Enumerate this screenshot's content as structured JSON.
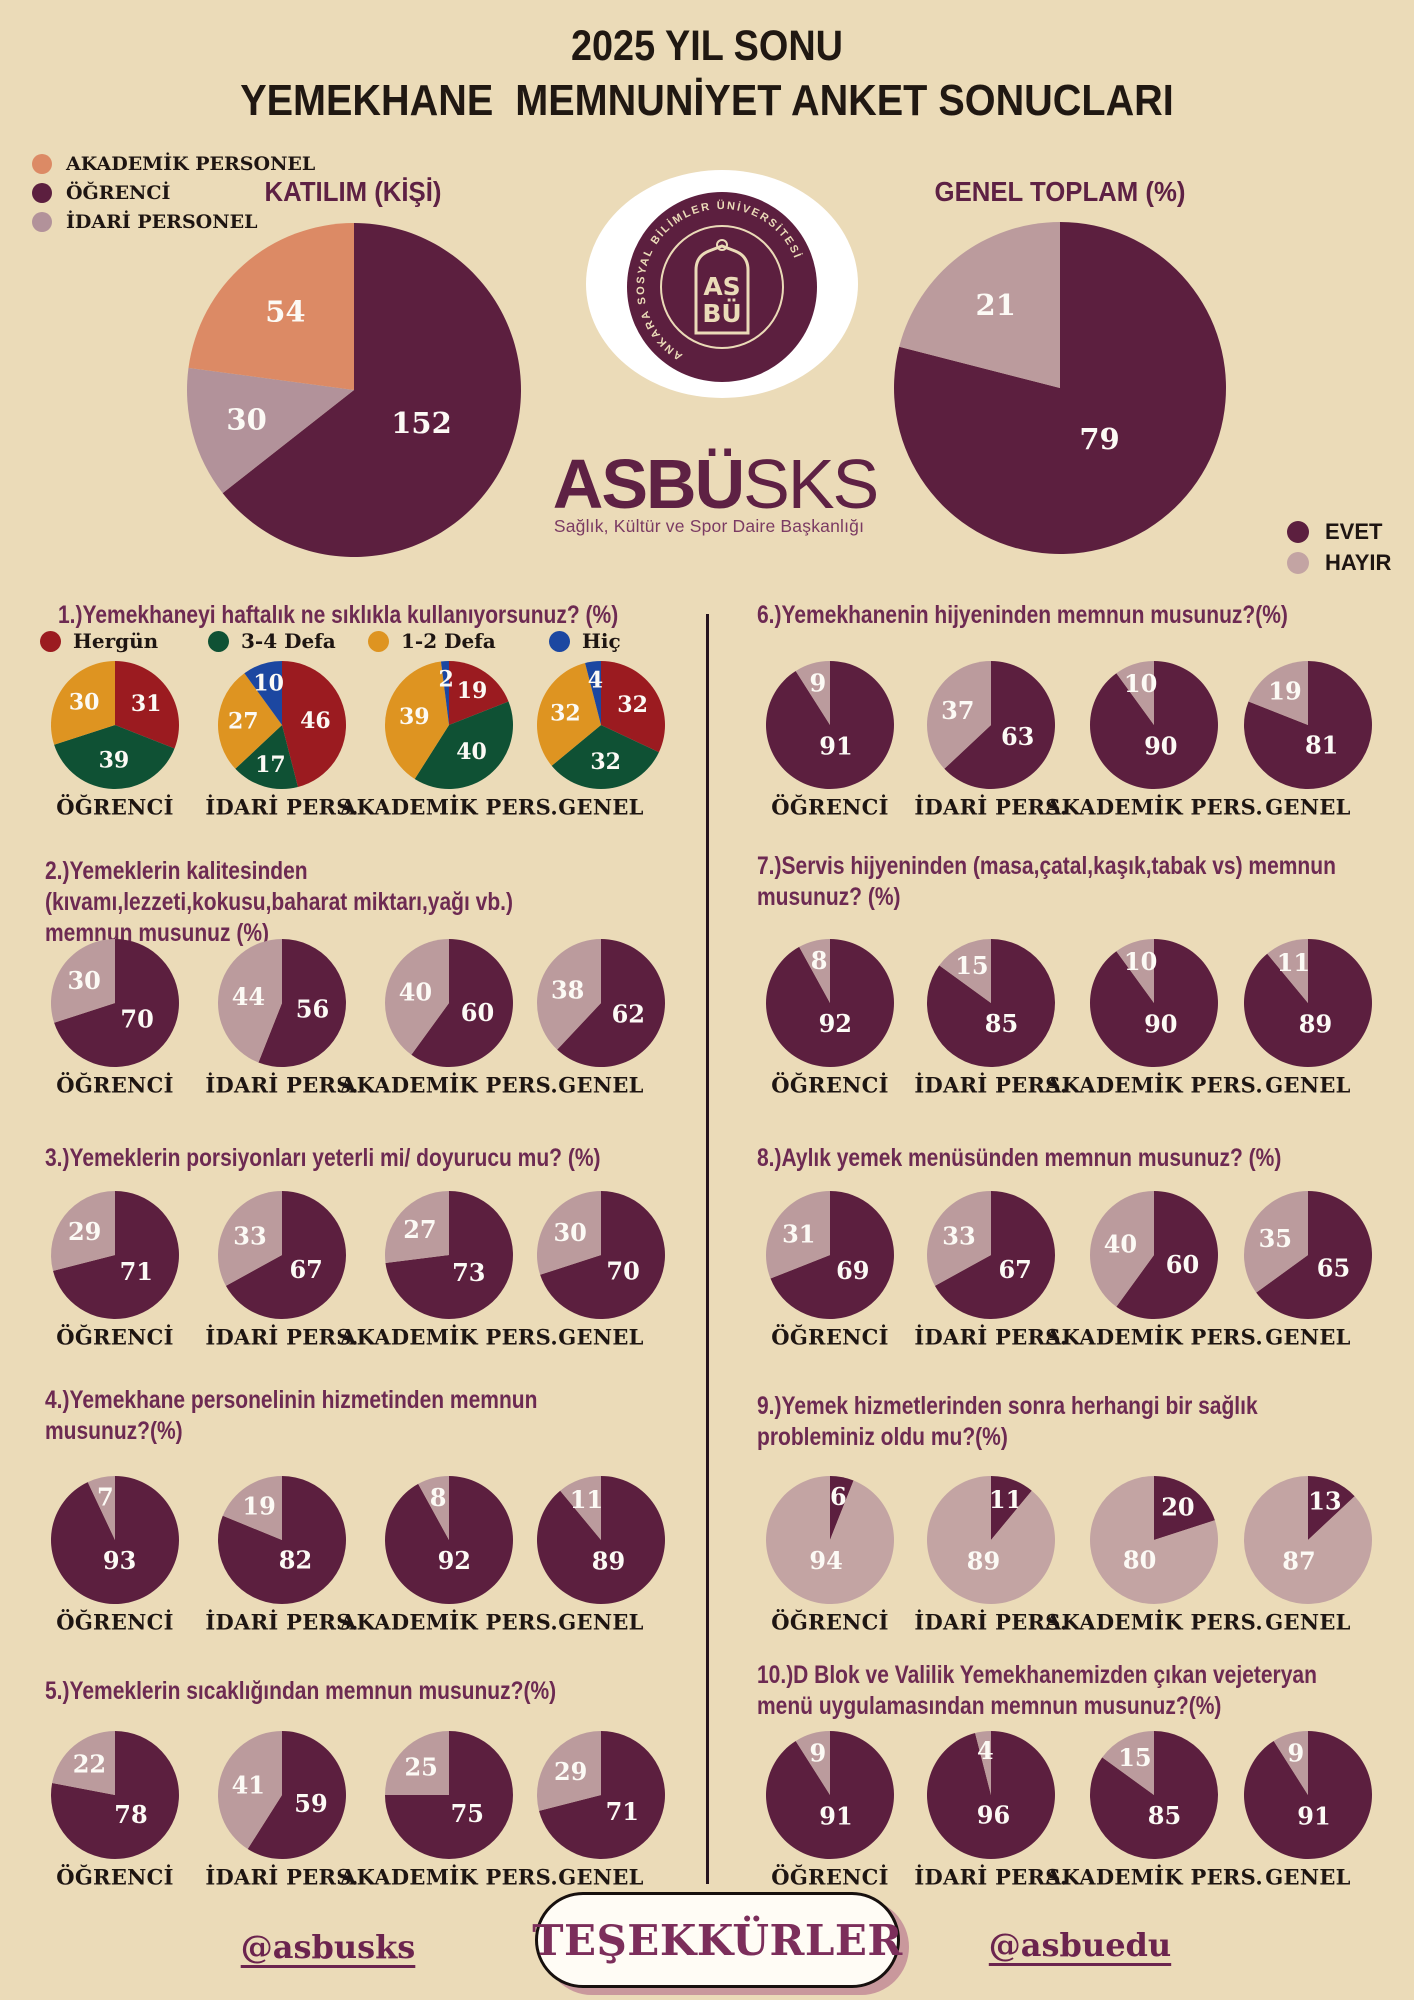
{
  "header": {
    "line1": "2025 YIL SONU",
    "line2": "YEMEKHANE  MEMNUNİYET ANKET SONUCLARI"
  },
  "colors": {
    "background": "#EBDBB8",
    "evet": "#5C1F3F",
    "hayir": "#BB9B9D",
    "hayir_light": "#C3A4A3",
    "salmon": "#DC8A65",
    "mauve_dot": "#B2929A",
    "red": "#9B1B20",
    "green": "#0F5134",
    "orange": "#DE9421",
    "blue": "#1C47A1",
    "question": "#6D2A52",
    "heading": "#5E2144",
    "dark_text": "#1E1512",
    "white_label": "#FCFAF5"
  },
  "participation_legend": [
    {
      "label": "AKADEMİK PERSONEL",
      "color_key": "salmon"
    },
    {
      "label": "ÖĞRENCİ",
      "color_key": "evet"
    },
    {
      "label": "İDARİ PERSONEL",
      "color_key": "mauve_dot"
    }
  ],
  "answer_legend": [
    {
      "label": "EVET",
      "color_key": "evet"
    },
    {
      "label": "HAYIR",
      "color_key": "hayir_light"
    }
  ],
  "logo": {
    "circle_text": "ANKARA SOSYAL BİLİMLER ÜNİVERSİTESİ",
    "monogram_top": "AS",
    "monogram_bottom": "BÜ",
    "wordmark_bold": "ASBÜ",
    "wordmark_light": "SKS",
    "subtitle": "Sağlık, Kültür ve Spor Daire Başkanlığı"
  },
  "footer": {
    "left_handle": "@asbusks",
    "thanks": "TEŞEKKÜRLER",
    "right_handle": "@asbuedu"
  },
  "chart_data": [
    {
      "id": "katilim",
      "type": "pie",
      "title": "KATILIM (KİŞİ)",
      "slices": [
        {
          "label": "ÖĞRENCİ",
          "value": 152,
          "color_key": "evet"
        },
        {
          "label": "İDARİ PERSONEL",
          "value": 30,
          "color_key": "mauve_dot"
        },
        {
          "label": "AKADEMİK PERSONEL",
          "value": 54,
          "color_key": "salmon"
        }
      ]
    },
    {
      "id": "genel-toplam",
      "type": "pie",
      "title": "GENEL TOPLAM (%)",
      "slices": [
        {
          "label": "EVET",
          "value": 79,
          "color_key": "evet"
        },
        {
          "label": "HAYIR",
          "value": 21,
          "color_key": "hayir"
        }
      ]
    },
    {
      "id": "q1",
      "type": "pie-group",
      "title_lines": [
        "1.)Yemekhaneyi haftalık ne sıklıkla kullanıyorsunuz? (%)"
      ],
      "legend": [
        {
          "label": "Hergün",
          "color_key": "red"
        },
        {
          "label": "3-4 Defa",
          "color_key": "green"
        },
        {
          "label": "1-2 Defa",
          "color_key": "orange"
        },
        {
          "label": "Hiç",
          "color_key": "blue"
        }
      ],
      "pies": [
        {
          "label": "ÖĞRENCİ",
          "slices": [
            {
              "value": 31,
              "color_key": "red"
            },
            {
              "value": 39,
              "color_key": "green"
            },
            {
              "value": 30,
              "color_key": "orange"
            }
          ]
        },
        {
          "label": "İDARİ PERS.",
          "slices": [
            {
              "value": 46,
              "color_key": "red"
            },
            {
              "value": 17,
              "color_key": "green"
            },
            {
              "value": 27,
              "color_key": "orange"
            },
            {
              "value": 10,
              "color_key": "blue"
            }
          ]
        },
        {
          "label": "AKADEMİK PERS.",
          "slices": [
            {
              "value": 19,
              "color_key": "red"
            },
            {
              "value": 40,
              "color_key": "green"
            },
            {
              "value": 39,
              "color_key": "orange"
            },
            {
              "value": 2,
              "color_key": "blue"
            }
          ]
        },
        {
          "label": "GENEL",
          "slices": [
            {
              "value": 32,
              "color_key": "red"
            },
            {
              "value": 32,
              "color_key": "green"
            },
            {
              "value": 32,
              "color_key": "orange"
            },
            {
              "value": 4,
              "color_key": "blue"
            }
          ]
        }
      ]
    },
    {
      "id": "q2",
      "type": "pie-group",
      "title_lines": [
        "2.)Yemeklerin kalitesinden",
        "(kıvamı,lezzeti,kokusu,baharat miktarı,yağı vb.)",
        "memnun musunuz (%)"
      ],
      "pies": [
        {
          "label": "ÖĞRENCİ",
          "slices": [
            {
              "value": 70,
              "color_key": "evet"
            },
            {
              "value": 30,
              "color_key": "hayir"
            }
          ]
        },
        {
          "label": "İDARİ PERS.",
          "slices": [
            {
              "value": 56,
              "color_key": "evet"
            },
            {
              "value": 44,
              "color_key": "hayir"
            }
          ]
        },
        {
          "label": "AKADEMİK PERS.",
          "slices": [
            {
              "value": 60,
              "color_key": "evet"
            },
            {
              "value": 40,
              "color_key": "hayir"
            }
          ]
        },
        {
          "label": "GENEL",
          "slices": [
            {
              "value": 62,
              "color_key": "evet"
            },
            {
              "value": 38,
              "color_key": "hayir"
            }
          ]
        }
      ]
    },
    {
      "id": "q3",
      "type": "pie-group",
      "title_lines": [
        "3.)Yemeklerin porsiyonları yeterli mi/ doyurucu mu? (%)"
      ],
      "pies": [
        {
          "label": "ÖĞRENCİ",
          "slices": [
            {
              "value": 71,
              "color_key": "evet"
            },
            {
              "value": 29,
              "color_key": "hayir"
            }
          ]
        },
        {
          "label": "İDARİ PERS.",
          "slices": [
            {
              "value": 67,
              "color_key": "evet"
            },
            {
              "value": 33,
              "color_key": "hayir"
            }
          ]
        },
        {
          "label": "AKADEMİK PERS.",
          "slices": [
            {
              "value": 73,
              "color_key": "evet"
            },
            {
              "value": 27,
              "color_key": "hayir"
            }
          ]
        },
        {
          "label": "GENEL",
          "slices": [
            {
              "value": 70,
              "color_key": "evet"
            },
            {
              "value": 30,
              "color_key": "hayir"
            }
          ]
        }
      ]
    },
    {
      "id": "q4",
      "type": "pie-group",
      "title_lines": [
        "4.)Yemekhane personelinin hizmetinden memnun",
        "musunuz?(%)"
      ],
      "pies": [
        {
          "label": "ÖĞRENCİ",
          "slices": [
            {
              "value": 93,
              "color_key": "evet"
            },
            {
              "value": 7,
              "color_key": "hayir"
            }
          ]
        },
        {
          "label": "İDARİ PERS.",
          "slices": [
            {
              "value": 82,
              "color_key": "evet"
            },
            {
              "value": 19,
              "color_key": "hayir"
            }
          ]
        },
        {
          "label": "AKADEMİK PERS.",
          "slices": [
            {
              "value": 92,
              "color_key": "evet"
            },
            {
              "value": 8,
              "color_key": "hayir"
            }
          ]
        },
        {
          "label": "GENEL",
          "slices": [
            {
              "value": 89,
              "color_key": "evet"
            },
            {
              "value": 11,
              "color_key": "hayir"
            }
          ]
        }
      ]
    },
    {
      "id": "q5",
      "type": "pie-group",
      "title_lines": [
        "5.)Yemeklerin sıcaklığından memnun musunuz?(%)"
      ],
      "pies": [
        {
          "label": "ÖĞRENCİ",
          "slices": [
            {
              "value": 78,
              "color_key": "evet"
            },
            {
              "value": 22,
              "color_key": "hayir"
            }
          ]
        },
        {
          "label": "İDARİ PERS.",
          "slices": [
            {
              "value": 59,
              "color_key": "evet"
            },
            {
              "value": 41,
              "color_key": "hayir"
            }
          ]
        },
        {
          "label": "AKADEMİK PERS.",
          "slices": [
            {
              "value": 75,
              "color_key": "evet"
            },
            {
              "value": 25,
              "color_key": "hayir"
            }
          ]
        },
        {
          "label": "GENEL",
          "slices": [
            {
              "value": 71,
              "color_key": "evet"
            },
            {
              "value": 29,
              "color_key": "hayir"
            }
          ]
        }
      ]
    },
    {
      "id": "q6",
      "type": "pie-group",
      "title_lines": [
        "6.)Yemekhanenin hijyeninden memnun musunuz?(%)"
      ],
      "pies": [
        {
          "label": "ÖĞRENCİ",
          "slices": [
            {
              "value": 91,
              "color_key": "evet"
            },
            {
              "value": 9,
              "color_key": "hayir"
            }
          ]
        },
        {
          "label": "İDARİ PERS.",
          "slices": [
            {
              "value": 63,
              "color_key": "evet"
            },
            {
              "value": 37,
              "color_key": "hayir"
            }
          ]
        },
        {
          "label": "AKADEMİK PERS.",
          "slices": [
            {
              "value": 90,
              "color_key": "evet"
            },
            {
              "value": 10,
              "color_key": "hayir"
            }
          ]
        },
        {
          "label": "GENEL",
          "slices": [
            {
              "value": 81,
              "color_key": "evet"
            },
            {
              "value": 19,
              "color_key": "hayir"
            }
          ]
        }
      ]
    },
    {
      "id": "q7",
      "type": "pie-group",
      "title_lines": [
        "7.)Servis hijyeninden (masa,çatal,kaşık,tabak vs) memnun",
        "musunuz? (%)"
      ],
      "pies": [
        {
          "label": "ÖĞRENCİ",
          "slices": [
            {
              "value": 92,
              "color_key": "evet"
            },
            {
              "value": 8,
              "color_key": "hayir"
            }
          ]
        },
        {
          "label": "İDARİ PERS.",
          "slices": [
            {
              "value": 85,
              "color_key": "evet"
            },
            {
              "value": 15,
              "color_key": "hayir"
            }
          ]
        },
        {
          "label": "AKADEMİK PERS.",
          "slices": [
            {
              "value": 90,
              "color_key": "evet"
            },
            {
              "value": 10,
              "color_key": "hayir"
            }
          ]
        },
        {
          "label": "GENEL",
          "slices": [
            {
              "value": 89,
              "color_key": "evet"
            },
            {
              "value": 11,
              "color_key": "hayir"
            }
          ]
        }
      ]
    },
    {
      "id": "q8",
      "type": "pie-group",
      "title_lines": [
        "8.)Aylık yemek menüsünden memnun musunuz? (%)"
      ],
      "pies": [
        {
          "label": "ÖĞRENCİ",
          "slices": [
            {
              "value": 69,
              "color_key": "evet"
            },
            {
              "value": 31,
              "color_key": "hayir"
            }
          ]
        },
        {
          "label": "İDARİ PERS.",
          "slices": [
            {
              "value": 67,
              "color_key": "evet"
            },
            {
              "value": 33,
              "color_key": "hayir"
            }
          ]
        },
        {
          "label": "AKADEMİK PERS.",
          "slices": [
            {
              "value": 60,
              "color_key": "evet"
            },
            {
              "value": 40,
              "color_key": "hayir"
            }
          ]
        },
        {
          "label": "GENEL",
          "slices": [
            {
              "value": 65,
              "color_key": "evet"
            },
            {
              "value": 35,
              "color_key": "hayir"
            }
          ]
        }
      ]
    },
    {
      "id": "q9",
      "type": "pie-group",
      "title_lines": [
        "9.)Yemek hizmetlerinden sonra herhangi bir sağlık",
        "probleminiz oldu mu?(%)"
      ],
      "pies": [
        {
          "label": "ÖĞRENCİ",
          "slices": [
            {
              "value": 6,
              "color_key": "evet"
            },
            {
              "value": 94,
              "color_key": "hayir_light"
            }
          ]
        },
        {
          "label": "İDARİ PERS.",
          "slices": [
            {
              "value": 11,
              "color_key": "evet"
            },
            {
              "value": 89,
              "color_key": "hayir_light"
            }
          ]
        },
        {
          "label": "AKADEMİK PERS.",
          "slices": [
            {
              "value": 20,
              "color_key": "evet"
            },
            {
              "value": 80,
              "color_key": "hayir_light"
            }
          ]
        },
        {
          "label": "GENEL",
          "slices": [
            {
              "value": 13,
              "color_key": "evet"
            },
            {
              "value": 87,
              "color_key": "hayir_light"
            }
          ]
        }
      ]
    },
    {
      "id": "q10",
      "type": "pie-group",
      "title_lines": [
        "10.)D Blok ve Valilik Yemekhanemizden çıkan vejeteryan",
        "menü uygulamasından memnun musunuz?(%)"
      ],
      "pies": [
        {
          "label": "ÖĞRENCİ",
          "slices": [
            {
              "value": 91,
              "color_key": "evet"
            },
            {
              "value": 9,
              "color_key": "hayir"
            }
          ]
        },
        {
          "label": "İDARİ PERS.",
          "slices": [
            {
              "value": 96,
              "color_key": "evet"
            },
            {
              "value": 4,
              "color_key": "hayir"
            }
          ]
        },
        {
          "label": "AKADEMİK PERS.",
          "slices": [
            {
              "value": 85,
              "color_key": "evet"
            },
            {
              "value": 15,
              "color_key": "hayir"
            }
          ]
        },
        {
          "label": "GENEL",
          "slices": [
            {
              "value": 91,
              "color_key": "evet"
            },
            {
              "value": 9,
              "color_key": "hayir"
            }
          ]
        }
      ]
    }
  ]
}
